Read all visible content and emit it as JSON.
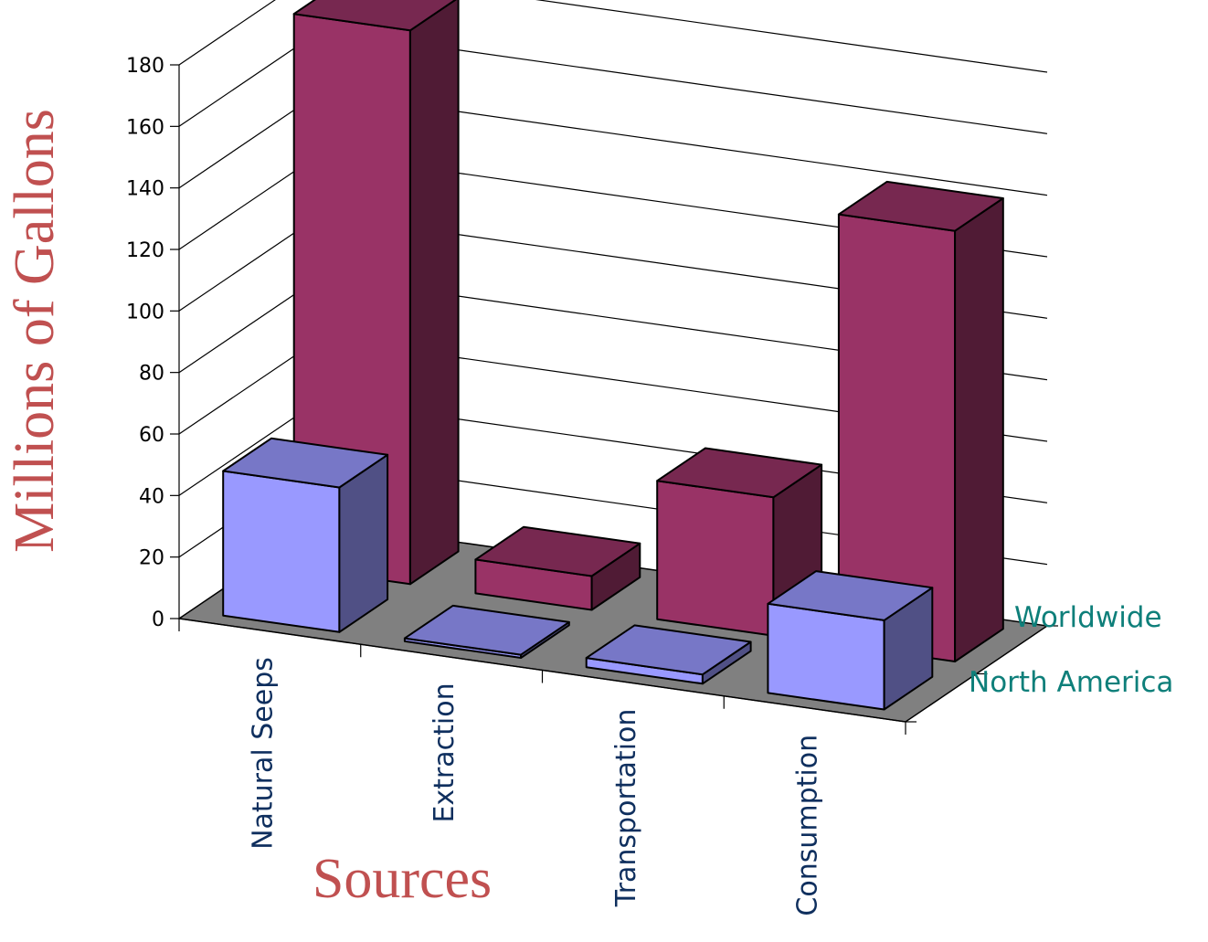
{
  "chart_data": {
    "type": "bar",
    "subtype": "3d-clustered-depth",
    "title": "",
    "xlabel": "Sources",
    "ylabel": "Millions of Gallons",
    "ylim": [
      0,
      180
    ],
    "yticks": [
      "0",
      "20",
      "40",
      "60",
      "80",
      "100",
      "120",
      "140",
      "160",
      "180"
    ],
    "categories": [
      "Natural Seeps",
      "Extraction",
      "Transportation",
      "Consumption"
    ],
    "series": [
      {
        "name": "North America",
        "values": [
          47,
          1,
          3,
          29
        ],
        "color": "#9999ff"
      },
      {
        "name": "Worldwide",
        "values": [
          180,
          11,
          45,
          140
        ],
        "color": "#993366"
      }
    ],
    "grid": true,
    "floor_color": "#808080"
  }
}
